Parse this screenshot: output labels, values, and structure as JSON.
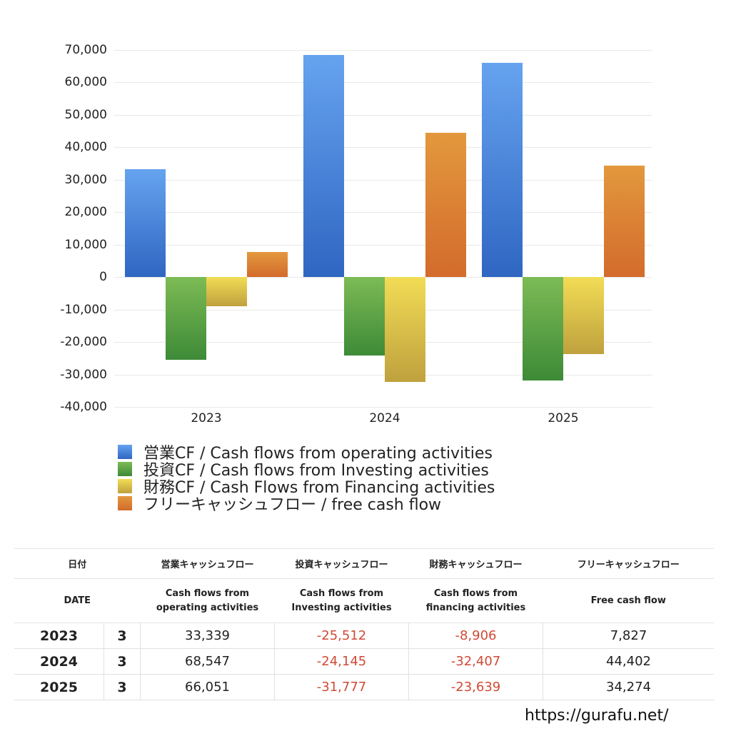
{
  "chart_data": {
    "type": "bar",
    "title": "",
    "xlabel": "",
    "ylabel": "",
    "categories": [
      "2023",
      "2024",
      "2025"
    ],
    "ylim": [
      -40000,
      70000
    ],
    "yticks": [
      "70,000",
      "60,000",
      "50,000",
      "40,000",
      "30,000",
      "20,000",
      "10,000",
      "0",
      "-10,000",
      "-20,000",
      "-30,000",
      "-40,000"
    ],
    "grid": true,
    "legend_position": "bottom",
    "series": [
      {
        "name": "営業CF / Cash flows from operating activities",
        "color": "#3a78d4",
        "values": [
          33339,
          68547,
          66051
        ]
      },
      {
        "name": "投資CF / Cash flows from Investing activities",
        "color": "#4e9a3e",
        "values": [
          -25512,
          -24145,
          -31777
        ]
      },
      {
        "name": "財務CF / Cash Flows from Financing activities",
        "color": "#e0c440",
        "values": [
          -8906,
          -32407,
          -23639
        ]
      },
      {
        "name": "フリーキャッシュフロー / free cash flow",
        "color": "#de7f30",
        "values": [
          7827,
          44402,
          34274
        ]
      }
    ]
  },
  "legend": [
    {
      "label": "営業CF / Cash flows from operating activities"
    },
    {
      "label": "投資CF / Cash flows from Investing activities"
    },
    {
      "label": "財務CF / Cash Flows from Financing activities"
    },
    {
      "label": "フリーキャッシュフロー / free cash flow"
    }
  ],
  "table": {
    "header_jp": [
      "日付",
      "営業キャッシュフロー",
      "投資キャッシュフロー",
      "財務キャッシュフロー",
      "フリーキャッシュフロー"
    ],
    "header_en": [
      "DATE",
      "Cash flows from\noperating activities",
      "Cash flows from\nInvesting activities",
      "Cash flows from\nfinancing activities",
      "Free cash flow"
    ],
    "rows": [
      {
        "year": "2023",
        "month": "3",
        "operating": "33,339",
        "investing": "-25,512",
        "financing": "-8,906",
        "free": "7,827"
      },
      {
        "year": "2024",
        "month": "3",
        "operating": "68,547",
        "investing": "-24,145",
        "financing": "-32,407",
        "free": "44,402"
      },
      {
        "year": "2025",
        "month": "3",
        "operating": "66,051",
        "investing": "-31,777",
        "financing": "-23,639",
        "free": "34,274"
      }
    ]
  },
  "footer": {
    "url": "https://gurafu.net/"
  }
}
